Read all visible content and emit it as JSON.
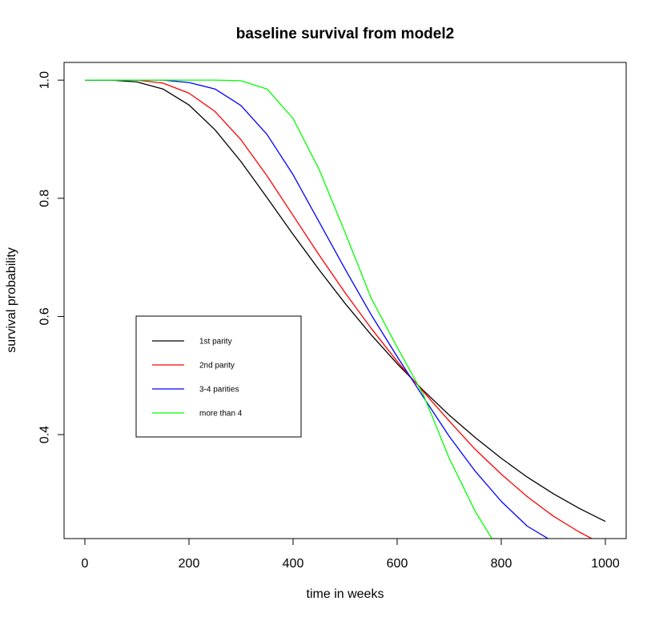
{
  "chart_data": {
    "type": "line",
    "title": "baseline survival from model2",
    "xlabel": "time in weeks",
    "ylabel": "survival probability",
    "xlim": [
      -40,
      1040
    ],
    "ylim": [
      0.224,
      1.03
    ],
    "xticks": [
      0,
      200,
      400,
      600,
      800,
      1000
    ],
    "yticks": [
      0.4,
      0.6,
      0.8,
      1.0
    ],
    "xtick_labels": [
      "0",
      "200",
      "400",
      "600",
      "800",
      "1000"
    ],
    "ytick_labels": [
      "0.4",
      "0.6",
      "0.8",
      "1.0"
    ],
    "grid": false,
    "legend_position": "center-left",
    "series": [
      {
        "name": "1st parity",
        "color": "#000000",
        "x": [
          0,
          50,
          100,
          150,
          200,
          250,
          300,
          350,
          400,
          450,
          500,
          550,
          600,
          650,
          700,
          750,
          800,
          850,
          900,
          950,
          1000
        ],
        "y": [
          1.0,
          1.0,
          0.997,
          0.985,
          0.958,
          0.916,
          0.862,
          0.801,
          0.739,
          0.679,
          0.622,
          0.569,
          0.52,
          0.475,
          0.433,
          0.395,
          0.36,
          0.328,
          0.3,
          0.275,
          0.253
        ]
      },
      {
        "name": "2nd parity",
        "color": "#ff0000",
        "x": [
          0,
          50,
          100,
          150,
          200,
          250,
          300,
          350,
          400,
          450,
          500,
          550,
          600,
          650,
          700,
          750,
          800,
          850,
          900,
          950,
          1000
        ],
        "y": [
          1.0,
          1.0,
          1.0,
          0.995,
          0.978,
          0.947,
          0.899,
          0.838,
          0.771,
          0.704,
          0.64,
          0.58,
          0.524,
          0.473,
          0.423,
          0.375,
          0.333,
          0.295,
          0.262,
          0.235,
          0.212
        ]
      },
      {
        "name": "3-4 parities",
        "color": "#0000ff",
        "x": [
          0,
          50,
          100,
          150,
          200,
          250,
          300,
          350,
          400,
          450,
          500,
          550,
          600,
          650,
          700,
          750,
          800,
          850,
          890
        ],
        "y": [
          1.0,
          1.0,
          1.0,
          1.0,
          0.996,
          0.985,
          0.957,
          0.908,
          0.84,
          0.76,
          0.68,
          0.603,
          0.532,
          0.464,
          0.397,
          0.338,
          0.287,
          0.245,
          0.224
        ]
      },
      {
        "name": "more than 4",
        "color": "#00ff00",
        "x": [
          0,
          50,
          100,
          150,
          200,
          250,
          300,
          350,
          400,
          450,
          500,
          550,
          600,
          650,
          700,
          750,
          782
        ],
        "y": [
          1.0,
          1.0,
          1.0,
          1.0,
          1.0,
          1.0,
          0.999,
          0.985,
          0.935,
          0.849,
          0.742,
          0.631,
          0.548,
          0.468,
          0.36,
          0.27,
          0.224
        ]
      }
    ]
  }
}
